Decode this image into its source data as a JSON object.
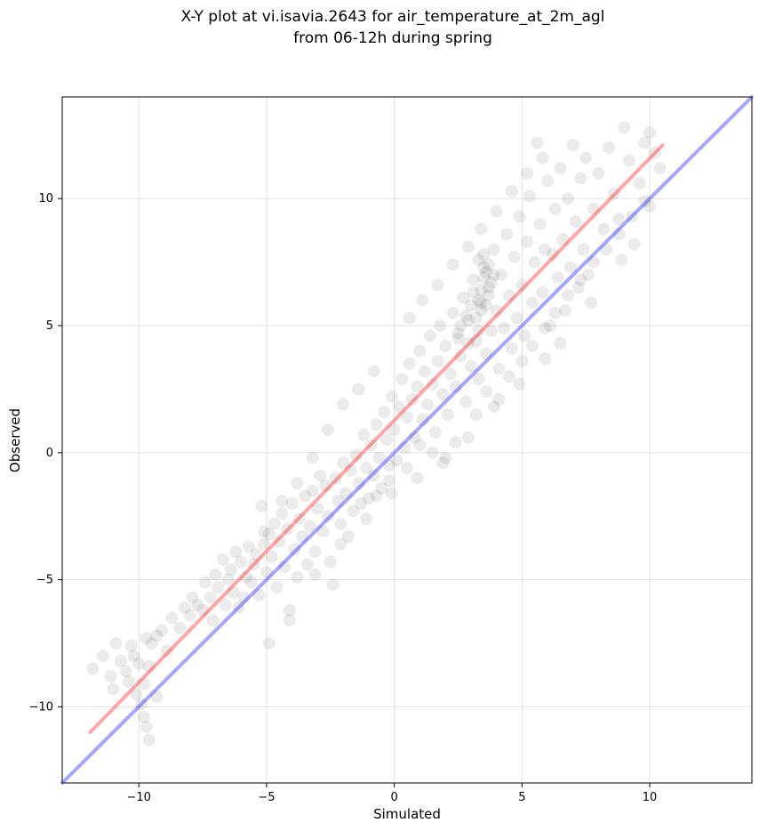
{
  "chart_data": {
    "type": "scatter",
    "title": [
      "X-Y plot at vi.isavia.2643 for air_temperature_at_2m_agl",
      "from 06-12h during spring"
    ],
    "xlabel": "Simulated",
    "ylabel": "Observed",
    "xlim": [
      -13,
      14
    ],
    "ylim": [
      -13,
      14
    ],
    "xticks": [
      -10,
      -5,
      0,
      5,
      10
    ],
    "yticks": [
      -10,
      -5,
      0,
      5,
      10
    ],
    "xtick_labels": [
      "−10",
      "−5",
      "0",
      "5",
      "10"
    ],
    "ytick_labels": [
      "−10",
      "−5",
      "0",
      "5",
      "10"
    ],
    "grid": true,
    "series": [
      {
        "kind": "points",
        "color": "#000000",
        "opacity": 0.08,
        "points": [
          [
            -11.8,
            -8.5
          ],
          [
            -11.4,
            -8.0
          ],
          [
            -11.1,
            -8.8
          ],
          [
            -11.0,
            -9.3
          ],
          [
            -10.9,
            -7.5
          ],
          [
            -10.7,
            -8.2
          ],
          [
            -10.5,
            -8.6
          ],
          [
            -10.4,
            -9.0
          ],
          [
            -10.3,
            -7.6
          ],
          [
            -10.2,
            -8.0
          ],
          [
            -10.1,
            -9.5
          ],
          [
            -10.0,
            -8.3
          ],
          [
            -9.9,
            -9.9
          ],
          [
            -9.8,
            -10.4
          ],
          [
            -9.7,
            -7.3
          ],
          [
            -9.6,
            -8.4
          ],
          [
            -9.8,
            -9.1
          ],
          [
            -9.6,
            -11.3
          ],
          [
            -9.7,
            -10.8
          ],
          [
            -9.5,
            -7.5
          ],
          [
            -9.3,
            -9.6
          ],
          [
            -9.3,
            -7.2
          ],
          [
            -9.1,
            -7.0
          ],
          [
            -8.9,
            -7.8
          ],
          [
            -8.7,
            -6.5
          ],
          [
            -8.4,
            -6.9
          ],
          [
            -8.2,
            -6.1
          ],
          [
            -8.0,
            -6.4
          ],
          [
            -7.9,
            -5.7
          ],
          [
            -7.7,
            -6.0
          ],
          [
            -7.5,
            -6.2
          ],
          [
            -7.4,
            -5.1
          ],
          [
            -7.2,
            -5.7
          ],
          [
            -7.1,
            -6.6
          ],
          [
            -7.0,
            -4.8
          ],
          [
            -6.9,
            -5.3
          ],
          [
            -6.7,
            -4.2
          ],
          [
            -6.6,
            -6.0
          ],
          [
            -6.5,
            -5.0
          ],
          [
            -6.4,
            -4.6
          ],
          [
            -6.3,
            -5.5
          ],
          [
            -6.2,
            -3.9
          ],
          [
            -6.1,
            -6.1
          ],
          [
            -6.0,
            -4.3
          ],
          [
            -5.9,
            -5.7
          ],
          [
            -5.8,
            -4.9
          ],
          [
            -5.7,
            -3.7
          ],
          [
            -5.6,
            -5.1
          ],
          [
            -5.5,
            -4.4
          ],
          [
            -5.4,
            -4.0
          ],
          [
            -5.3,
            -5.6
          ],
          [
            -5.2,
            -2.1
          ],
          [
            -5.1,
            -3.6
          ],
          [
            -5.0,
            -4.7
          ],
          [
            -4.9,
            -3.2
          ],
          [
            -4.8,
            -4.1
          ],
          [
            -4.7,
            -2.8
          ],
          [
            -4.6,
            -5.3
          ],
          [
            -4.5,
            -3.5
          ],
          [
            -4.4,
            -2.4
          ],
          [
            -4.3,
            -4.5
          ],
          [
            -4.2,
            -3.0
          ],
          [
            -4.1,
            -6.2
          ],
          [
            -4.0,
            -2.0
          ],
          [
            -3.9,
            -3.8
          ],
          [
            -3.8,
            -4.9
          ],
          [
            -3.7,
            -2.6
          ],
          [
            -3.6,
            -3.3
          ],
          [
            -3.5,
            -1.7
          ],
          [
            -3.4,
            -4.4
          ],
          [
            -3.3,
            -2.9
          ],
          [
            -3.2,
            -1.5
          ],
          [
            -3.1,
            -3.9
          ],
          [
            -3.0,
            -2.2
          ],
          [
            -2.9,
            -0.9
          ],
          [
            -2.8,
            -3.1
          ],
          [
            -2.7,
            -1.3
          ],
          [
            -2.6,
            -2.5
          ],
          [
            -2.5,
            -4.3
          ],
          [
            -2.4,
            -5.2
          ],
          [
            -2.3,
            -1.0
          ],
          [
            -2.2,
            -1.9
          ],
          [
            -2.1,
            -2.8
          ],
          [
            -2.0,
            -0.4
          ],
          [
            -1.9,
            -1.6
          ],
          [
            -1.8,
            -3.3
          ],
          [
            -1.7,
            -0.7
          ],
          [
            -1.6,
            -2.3
          ],
          [
            -1.5,
            -0.1
          ],
          [
            -1.4,
            -1.2
          ],
          [
            -1.3,
            -2.0
          ],
          [
            -1.2,
            0.7
          ],
          [
            -1.1,
            -0.6
          ],
          [
            -1.0,
            -1.8
          ],
          [
            -0.9,
            0.3
          ],
          [
            -0.8,
            -0.9
          ],
          [
            -0.7,
            1.1
          ],
          [
            -0.6,
            -0.2
          ],
          [
            -0.5,
            -1.4
          ],
          [
            -0.4,
            1.6
          ],
          [
            -0.3,
            0.5
          ],
          [
            -0.2,
            -0.5
          ],
          [
            -0.1,
            2.2
          ],
          [
            0.0,
            0.9
          ],
          [
            0.1,
            -0.3
          ],
          [
            0.2,
            1.8
          ],
          [
            0.3,
            2.9
          ],
          [
            0.4,
            0.2
          ],
          [
            0.5,
            1.4
          ],
          [
            0.6,
            3.5
          ],
          [
            0.7,
            2.1
          ],
          [
            0.8,
            0.6
          ],
          [
            0.9,
            2.6
          ],
          [
            1.0,
            4.0
          ],
          [
            1.1,
            1.3
          ],
          [
            1.2,
            3.2
          ],
          [
            1.3,
            1.9
          ],
          [
            1.4,
            4.6
          ],
          [
            1.5,
            2.7
          ],
          [
            1.6,
            0.8
          ],
          [
            1.7,
            3.6
          ],
          [
            1.8,
            5.0
          ],
          [
            1.9,
            2.3
          ],
          [
            2.0,
            4.2
          ],
          [
            2.1,
            1.5
          ],
          [
            2.2,
            3.1
          ],
          [
            2.3,
            5.5
          ],
          [
            2.4,
            2.6
          ],
          [
            2.5,
            4.5
          ],
          [
            2.6,
            3.8
          ],
          [
            2.7,
            6.1
          ],
          [
            2.8,
            2.0
          ],
          [
            2.9,
            5.2
          ],
          [
            3.0,
            3.4
          ],
          [
            3.1,
            6.8
          ],
          [
            3.2,
            4.4
          ],
          [
            3.3,
            2.9
          ],
          [
            3.4,
            5.9
          ],
          [
            3.5,
            7.3
          ],
          [
            3.6,
            3.9
          ],
          [
            3.7,
            6.5
          ],
          [
            3.8,
            4.8
          ],
          [
            3.9,
            8.0
          ],
          [
            4.0,
            5.6
          ],
          [
            4.1,
            3.3
          ],
          [
            4.2,
            7.0
          ],
          [
            4.3,
            4.9
          ],
          [
            4.4,
            8.6
          ],
          [
            4.5,
            6.2
          ],
          [
            4.6,
            4.1
          ],
          [
            4.7,
            7.7
          ],
          [
            4.8,
            5.3
          ],
          [
            4.9,
            9.3
          ],
          [
            5.0,
            6.6
          ],
          [
            5.1,
            4.6
          ],
          [
            5.2,
            8.3
          ],
          [
            5.3,
            10.1
          ],
          [
            5.4,
            5.9
          ],
          [
            5.5,
            7.5
          ],
          [
            5.6,
            12.2
          ],
          [
            5.7,
            9.0
          ],
          [
            5.8,
            6.3
          ],
          [
            5.9,
            8.0
          ],
          [
            6.0,
            10.7
          ],
          [
            6.1,
            5.0
          ],
          [
            6.2,
            7.8
          ],
          [
            6.3,
            9.6
          ],
          [
            6.4,
            6.9
          ],
          [
            6.5,
            11.2
          ],
          [
            6.6,
            8.4
          ],
          [
            6.7,
            5.6
          ],
          [
            6.8,
            10.0
          ],
          [
            6.9,
            7.3
          ],
          [
            7.0,
            12.1
          ],
          [
            7.1,
            9.1
          ],
          [
            7.2,
            6.5
          ],
          [
            7.3,
            10.8
          ],
          [
            7.4,
            8.0
          ],
          [
            7.5,
            11.6
          ],
          [
            7.6,
            7.0
          ],
          [
            7.8,
            9.6
          ],
          [
            8.0,
            11.0
          ],
          [
            8.2,
            8.8
          ],
          [
            8.4,
            12.0
          ],
          [
            8.6,
            10.2
          ],
          [
            8.8,
            9.2
          ],
          [
            9.0,
            12.8
          ],
          [
            9.2,
            11.5
          ],
          [
            9.4,
            8.2
          ],
          [
            9.6,
            10.6
          ],
          [
            9.8,
            12.2
          ],
          [
            10.0,
            9.7
          ],
          [
            10.2,
            11.8
          ],
          [
            10.4,
            11.2
          ],
          [
            10.0,
            12.6
          ],
          [
            8.9,
            7.6
          ],
          [
            7.7,
            5.9
          ],
          [
            6.5,
            4.3
          ],
          [
            5.9,
            3.7
          ],
          [
            4.9,
            2.7
          ],
          [
            3.9,
            1.8
          ],
          [
            2.9,
            0.6
          ],
          [
            1.9,
            -0.4
          ],
          [
            0.9,
            -1.0
          ],
          [
            -0.1,
            -1.6
          ],
          [
            -1.1,
            -2.6
          ],
          [
            -2.1,
            -3.6
          ],
          [
            -3.1,
            -4.8
          ],
          [
            -4.1,
            -6.6
          ],
          [
            -4.9,
            -7.5
          ],
          [
            -0.8,
            3.2
          ],
          [
            -1.4,
            2.5
          ],
          [
            -2.0,
            1.9
          ],
          [
            -2.6,
            0.9
          ],
          [
            -3.2,
            -0.2
          ],
          [
            -3.8,
            -1.2
          ],
          [
            -4.4,
            -1.9
          ],
          [
            -5.1,
            -3.1
          ],
          [
            0.6,
            5.3
          ],
          [
            1.1,
            6.0
          ],
          [
            1.7,
            6.6
          ],
          [
            2.3,
            7.4
          ],
          [
            2.9,
            8.1
          ],
          [
            3.4,
            8.8
          ],
          [
            4.0,
            9.5
          ],
          [
            4.6,
            10.3
          ],
          [
            5.2,
            11.0
          ],
          [
            5.8,
            11.6
          ],
          [
            3.2,
            1.5
          ],
          [
            3.6,
            2.4
          ],
          [
            4.1,
            2.1
          ],
          [
            4.5,
            3.0
          ],
          [
            5.0,
            3.6
          ],
          [
            5.4,
            4.2
          ],
          [
            5.9,
            4.9
          ],
          [
            6.3,
            5.5
          ],
          [
            6.8,
            6.2
          ],
          [
            7.3,
            6.8
          ],
          [
            7.8,
            7.5
          ],
          [
            8.3,
            8.0
          ],
          [
            8.8,
            8.6
          ],
          [
            9.3,
            9.3
          ],
          [
            9.8,
            9.9
          ],
          [
            2.0,
            -0.2
          ],
          [
            2.4,
            0.4
          ],
          [
            1.5,
            0.0
          ],
          [
            1.0,
            0.3
          ],
          [
            0.5,
            -0.6
          ],
          [
            -0.2,
            -1.1
          ],
          [
            -0.7,
            -1.7
          ],
          [
            3.3,
            6.0
          ],
          [
            3.4,
            6.4
          ],
          [
            3.5,
            6.9
          ],
          [
            3.6,
            7.1
          ],
          [
            3.5,
            7.8
          ],
          [
            3.3,
            7.6
          ],
          [
            3.7,
            6.2
          ],
          [
            3.4,
            5.6
          ],
          [
            3.2,
            5.3
          ],
          [
            3.6,
            5.8
          ],
          [
            3.8,
            6.7
          ],
          [
            3.1,
            6.3
          ],
          [
            3.0,
            5.8
          ],
          [
            3.7,
            7.4
          ],
          [
            3.9,
            7.0
          ],
          [
            2.8,
            5.4
          ],
          [
            2.6,
            5.0
          ],
          [
            2.5,
            4.7
          ],
          [
            2.9,
            4.3
          ],
          [
            3.3,
            4.8
          ]
        ]
      },
      {
        "kind": "line",
        "name": "",
        "color": "#ff0000",
        "opacity": 0.35,
        "x": [
          -11.9,
          10.5
        ],
        "y": [
          -11.0,
          12.1
        ]
      },
      {
        "kind": "line",
        "name": "",
        "color": "#0000ff",
        "opacity": 0.35,
        "x": [
          -13,
          14
        ],
        "y": [
          -13,
          14
        ]
      }
    ]
  }
}
